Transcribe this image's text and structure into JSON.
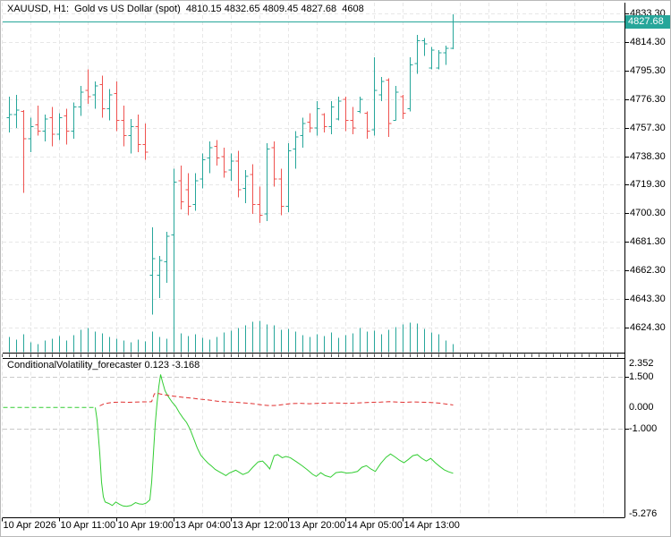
{
  "window": {
    "main_title": "XAUUSD, H1:  Gold vs US Dollar (spot)  4810.15 4832.65 4809.45 4827.68  4608",
    "symbol": "XAUUSD",
    "timeframe": "H1",
    "ohlcv_readout": {
      "open": "4810.15",
      "high": "4832.65",
      "low": "4809.45",
      "close": "4827.68",
      "volume": "4608"
    }
  },
  "indicator": {
    "title": "ConditionalVolatility_forecaster 0.123 -3.168",
    "name": "ConditionalVolatility_forecaster",
    "current_values": [
      "0.123",
      "-3.168"
    ]
  },
  "price_axis": {
    "current_price": "4827.68",
    "labels": [
      "4833.30",
      "4814.30",
      "4795.30",
      "4776.30",
      "4757.30",
      "4738.30",
      "4719.30",
      "4700.30",
      "4681.30",
      "4662.30",
      "4643.30",
      "4624.30"
    ],
    "top_value": 4833.3,
    "step": 19.0
  },
  "indicator_axis": {
    "labels": [
      "2.352",
      "1.500",
      "0.000",
      "-1.000",
      "-5.276"
    ],
    "values": [
      2.352,
      1.5,
      0.0,
      -1.0,
      -5.276
    ]
  },
  "time_axis": {
    "labels": [
      "10 Apr 2026",
      "10 Apr 11:00",
      "10 Apr 19:00",
      "13 Apr 04:00",
      "13 Apr 12:00",
      "13 Apr 20:00",
      "14 Apr 05:00",
      "14 Apr 13:00"
    ]
  },
  "colors": {
    "bar_up": "#26a69a",
    "bar_down": "#ef5350",
    "volume": "#26a69a",
    "price_line": "#26a69a",
    "badge_bg": "#26a69a",
    "badge_text": "#ffffff",
    "grid": "#e7e7e7",
    "indicator_grid": "#c9c9c9",
    "indicator_green": "#32cd32",
    "indicator_red": "#e03030",
    "frame": "#000000",
    "background": "#ffffff"
  },
  "chart_data": {
    "type": "ohlc-bar",
    "title": "XAUUSD H1 Gold vs US Dollar (spot)",
    "ylabel": "price",
    "ylim": [
      4624.3,
      4833.3
    ],
    "x_start": 9,
    "x_step": 8,
    "bars": [
      [
        4764,
        4778,
        4754,
        4766,
        "u"
      ],
      [
        4766,
        4779,
        4757,
        4769,
        "u"
      ],
      [
        4768,
        4769,
        4714,
        4750,
        "d"
      ],
      [
        4750,
        4764,
        4741,
        4758,
        "u"
      ],
      [
        4759,
        4772,
        4752,
        4755,
        "d"
      ],
      [
        4755,
        4766,
        4748,
        4763,
        "u"
      ],
      [
        4764,
        4771,
        4745,
        4753,
        "d"
      ],
      [
        4753,
        4767,
        4749,
        4764,
        "u"
      ],
      [
        4765,
        4770,
        4746,
        4755,
        "d"
      ],
      [
        4755,
        4774,
        4750,
        4771,
        "u"
      ],
      [
        4771,
        4785,
        4765,
        4781,
        "u"
      ],
      [
        4782,
        4796,
        4773,
        4778,
        "d"
      ],
      [
        4779,
        4788,
        4770,
        4785,
        "u"
      ],
      [
        4786,
        4792,
        4764,
        4770,
        "d"
      ],
      [
        4770,
        4783,
        4762,
        4779,
        "u"
      ],
      [
        4780,
        4788,
        4755,
        4762,
        "d"
      ],
      [
        4762,
        4772,
        4745,
        4752,
        "d"
      ],
      [
        4752,
        4763,
        4740,
        4758,
        "u"
      ],
      [
        4758,
        4766,
        4741,
        4746,
        "d"
      ],
      [
        4746,
        4760,
        4736,
        4741,
        "d"
      ],
      [
        4659,
        4691,
        4633,
        4670,
        "u"
      ],
      [
        4659,
        4672,
        4644,
        4669,
        "u"
      ],
      [
        4668,
        4688,
        4654,
        4685,
        "u"
      ],
      [
        4686,
        4730,
        4622,
        4721,
        "u"
      ],
      [
        4722,
        4732,
        4703,
        4708,
        "d"
      ],
      [
        4716,
        4727,
        4699,
        4705,
        "d"
      ],
      [
        4706,
        4727,
        4702,
        4722,
        "u"
      ],
      [
        4723,
        4740,
        4717,
        4736,
        "u"
      ],
      [
        4737,
        4748,
        4727,
        4744,
        "u"
      ],
      [
        4745,
        4749,
        4732,
        4737,
        "d"
      ],
      [
        4738,
        4744,
        4724,
        4728,
        "d"
      ],
      [
        4729,
        4740,
        4722,
        4735,
        "u"
      ],
      [
        4735,
        4742,
        4711,
        4716,
        "d"
      ],
      [
        4717,
        4729,
        4707,
        4725,
        "u"
      ],
      [
        4726,
        4733,
        4700,
        4706,
        "d"
      ],
      [
        4706,
        4718,
        4694,
        4699,
        "d"
      ],
      [
        4700,
        4747,
        4695,
        4743,
        "u"
      ],
      [
        4744,
        4748,
        4718,
        4723,
        "d"
      ],
      [
        4723,
        4730,
        4699,
        4705,
        "d"
      ],
      [
        4705,
        4747,
        4701,
        4742,
        "u"
      ],
      [
        4743,
        4755,
        4730,
        4751,
        "u"
      ],
      [
        4752,
        4764,
        4744,
        4760,
        "u"
      ],
      [
        4761,
        4767,
        4754,
        4757,
        "d"
      ],
      [
        4757,
        4775,
        4752,
        4770,
        "u"
      ],
      [
        4766,
        4767,
        4754,
        4758,
        "d"
      ],
      [
        4758,
        4775,
        4753,
        4771,
        "u"
      ],
      [
        4763,
        4778,
        4762,
        4775,
        "u"
      ],
      [
        4776,
        4778,
        4755,
        4762,
        "d"
      ],
      [
        4762,
        4771,
        4753,
        4757,
        "d"
      ],
      [
        4768,
        4778,
        4767,
        4776,
        "u"
      ],
      [
        4767,
        4768,
        4750,
        4755,
        "d"
      ],
      [
        4756,
        4804,
        4752,
        4782,
        "u"
      ],
      [
        4779,
        4791,
        4775,
        4788,
        "u"
      ],
      [
        4789,
        4790,
        4751,
        4760,
        "d"
      ],
      [
        4762,
        4785,
        4762,
        4781,
        "u"
      ],
      [
        4778,
        4779,
        4763,
        4767,
        "d"
      ],
      [
        4770,
        4804,
        4768,
        4799,
        "u"
      ],
      [
        4800,
        4819,
        4793,
        4815,
        "u"
      ],
      [
        4815,
        4817,
        4805,
        4813,
        "u"
      ],
      [
        4797,
        4811,
        4796,
        4809,
        "u"
      ],
      [
        4797,
        4809,
        4796,
        4807,
        "u"
      ],
      [
        4807,
        4812,
        4799,
        4810,
        "u"
      ],
      [
        4810.15,
        4832.65,
        4809.45,
        4827.68,
        "u"
      ]
    ],
    "volumes": [
      17,
      14,
      20,
      11,
      9,
      13,
      15,
      18,
      13,
      19,
      25,
      27,
      23,
      21,
      17,
      15,
      13,
      11,
      14,
      12,
      23,
      17,
      15,
      29,
      21,
      18,
      20,
      16,
      14,
      17,
      22,
      24,
      27,
      30,
      34,
      35,
      31,
      30,
      25,
      26,
      23,
      19,
      17,
      20,
      18,
      22,
      16,
      19,
      21,
      27,
      23,
      24,
      20,
      25,
      28,
      31,
      33,
      32,
      26,
      22,
      20,
      13,
      9
    ],
    "current_price": 4827.68,
    "indicator_series": {
      "ylim": [
        -5.276,
        2.352
      ],
      "green_flat": [
        [
          2,
          0
        ],
        [
          105,
          0
        ]
      ],
      "green": [
        [
          105,
          0
        ],
        [
          107,
          -0.6
        ],
        [
          110,
          -2.2
        ],
        [
          112,
          -3.6
        ],
        [
          114,
          -4.3
        ],
        [
          116,
          -4.55
        ],
        [
          120,
          -4.62
        ],
        [
          124,
          -4.72
        ],
        [
          128,
          -4.55
        ],
        [
          132,
          -4.66
        ],
        [
          136,
          -4.74
        ],
        [
          140,
          -4.76
        ],
        [
          145,
          -4.72
        ],
        [
          150,
          -4.58
        ],
        [
          154,
          -4.64
        ],
        [
          158,
          -4.66
        ],
        [
          162,
          -4.6
        ],
        [
          166,
          -4.45
        ],
        [
          168,
          -3.6
        ],
        [
          170,
          -2.2
        ],
        [
          172,
          -0.8
        ],
        [
          174,
          0.2
        ],
        [
          176,
          1.0
        ],
        [
          178,
          1.59
        ],
        [
          180,
          1.25
        ],
        [
          183,
          0.8
        ],
        [
          187,
          0.5
        ],
        [
          191,
          0.25
        ],
        [
          195,
          0.05
        ],
        [
          199,
          -0.25
        ],
        [
          203,
          -0.5
        ],
        [
          207,
          -0.72
        ],
        [
          211,
          -1.05
        ],
        [
          215,
          -1.5
        ],
        [
          219,
          -1.95
        ],
        [
          223,
          -2.3
        ],
        [
          227,
          -2.5
        ],
        [
          231,
          -2.68
        ],
        [
          235,
          -2.82
        ],
        [
          239,
          -2.98
        ],
        [
          243,
          -3.08
        ],
        [
          247,
          -3.18
        ],
        [
          251,
          -3.28
        ],
        [
          255,
          -3.15
        ],
        [
          262,
          -3.02
        ],
        [
          270,
          -3.23
        ],
        [
          276,
          -3.12
        ],
        [
          281,
          -2.88
        ],
        [
          287,
          -2.62
        ],
        [
          292,
          -2.58
        ],
        [
          297,
          -2.8
        ],
        [
          300,
          -2.96
        ],
        [
          305,
          -2.32
        ],
        [
          309,
          -2.27
        ],
        [
          314,
          -2.42
        ],
        [
          318,
          -2.36
        ],
        [
          323,
          -2.42
        ],
        [
          330,
          -2.62
        ],
        [
          336,
          -2.8
        ],
        [
          342,
          -3.0
        ],
        [
          348,
          -3.22
        ],
        [
          352,
          -3.32
        ],
        [
          357,
          -3.14
        ],
        [
          362,
          -3.28
        ],
        [
          368,
          -3.36
        ],
        [
          374,
          -3.14
        ],
        [
          380,
          -3.1
        ],
        [
          386,
          -3.16
        ],
        [
          392,
          -3.14
        ],
        [
          398,
          -3.08
        ],
        [
          403,
          -2.88
        ],
        [
          408,
          -2.8
        ],
        [
          413,
          -2.96
        ],
        [
          418,
          -3.08
        ],
        [
          424,
          -2.7
        ],
        [
          430,
          -2.4
        ],
        [
          435,
          -2.24
        ],
        [
          440,
          -2.38
        ],
        [
          445,
          -2.54
        ],
        [
          450,
          -2.66
        ],
        [
          455,
          -2.5
        ],
        [
          460,
          -2.32
        ],
        [
          465,
          -2.27
        ],
        [
          470,
          -2.45
        ],
        [
          475,
          -2.58
        ],
        [
          480,
          -2.45
        ],
        [
          485,
          -2.66
        ],
        [
          490,
          -2.84
        ],
        [
          495,
          -3.0
        ],
        [
          500,
          -3.1
        ],
        [
          505,
          -3.168
        ]
      ],
      "red": [
        [
          110,
          0.08
        ],
        [
          114,
          0.16
        ],
        [
          120,
          0.22
        ],
        [
          126,
          0.25
        ],
        [
          134,
          0.26
        ],
        [
          142,
          0.25
        ],
        [
          150,
          0.26
        ],
        [
          158,
          0.27
        ],
        [
          164,
          0.27
        ],
        [
          168,
          0.28
        ],
        [
          171,
          0.66
        ],
        [
          174,
          0.69
        ],
        [
          178,
          0.65
        ],
        [
          184,
          0.6
        ],
        [
          190,
          0.56
        ],
        [
          197,
          0.52
        ],
        [
          205,
          0.48
        ],
        [
          213,
          0.45
        ],
        [
          222,
          0.4
        ],
        [
          232,
          0.36
        ],
        [
          242,
          0.3
        ],
        [
          252,
          0.27
        ],
        [
          262,
          0.25
        ],
        [
          272,
          0.22
        ],
        [
          282,
          0.18
        ],
        [
          292,
          0.12
        ],
        [
          300,
          0.09
        ],
        [
          308,
          0.1
        ],
        [
          316,
          0.15
        ],
        [
          324,
          0.19
        ],
        [
          334,
          0.2
        ],
        [
          344,
          0.18
        ],
        [
          354,
          0.2
        ],
        [
          364,
          0.21
        ],
        [
          374,
          0.22
        ],
        [
          384,
          0.2
        ],
        [
          394,
          0.21
        ],
        [
          404,
          0.23
        ],
        [
          414,
          0.25
        ],
        [
          424,
          0.26
        ],
        [
          434,
          0.28
        ],
        [
          444,
          0.26
        ],
        [
          452,
          0.25
        ],
        [
          460,
          0.27
        ],
        [
          468,
          0.26
        ],
        [
          476,
          0.25
        ],
        [
          484,
          0.23
        ],
        [
          492,
          0.2
        ],
        [
          498,
          0.16
        ],
        [
          505,
          0.123
        ]
      ]
    }
  }
}
